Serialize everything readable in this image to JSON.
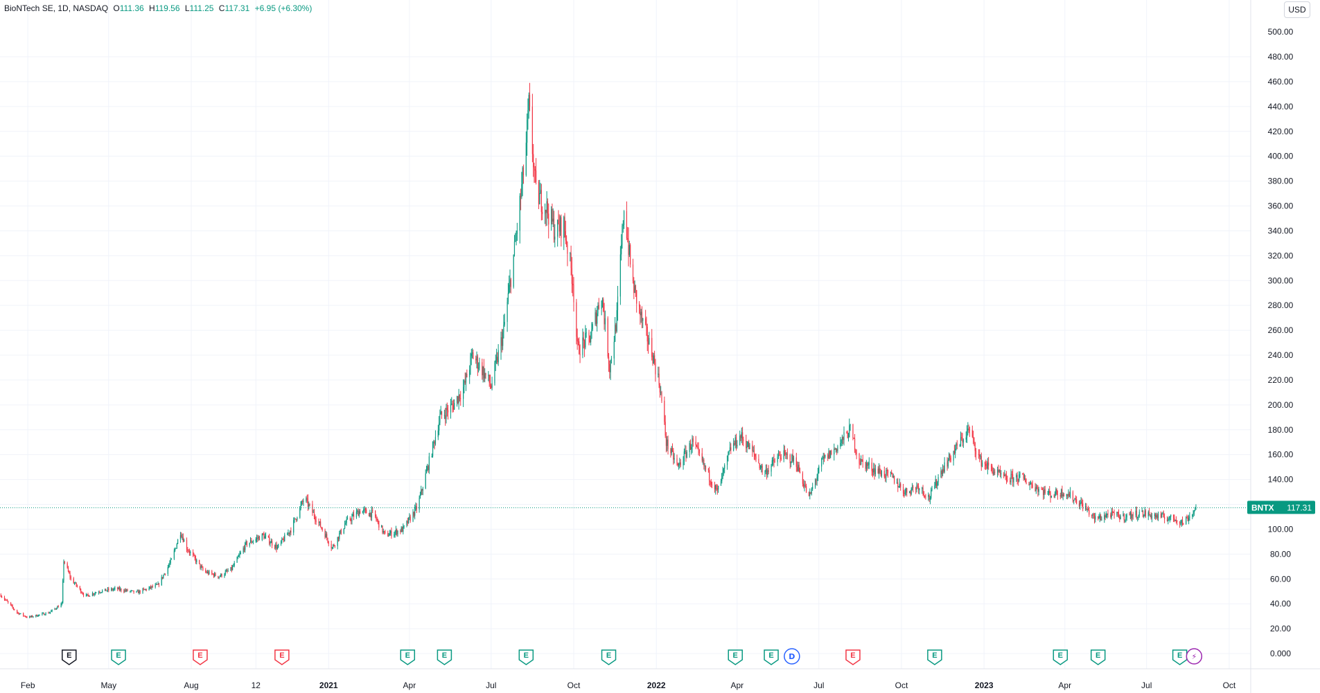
{
  "header": {
    "symbol": "BioNTech SE, 1D, NASDAQ",
    "open_label": "O",
    "open": "111.36",
    "high_label": "H",
    "high": "119.56",
    "low_label": "L",
    "low": "111.25",
    "close_label": "C",
    "close": "117.31",
    "change": "+6.95 (+6.30%)"
  },
  "currency": "USD",
  "colors": {
    "up": "#089981",
    "down": "#f23645",
    "grid": "#f0f3fa",
    "text": "#131722",
    "dividend": "#2962ff",
    "split": "#9c27b0"
  },
  "chart_data": {
    "type": "candlestick",
    "ticker": "BNTX",
    "last_price": "117.31",
    "ylim": [
      0,
      480
    ],
    "y_ticks": [
      "0.000",
      "20.00",
      "40.00",
      "60.00",
      "80.00",
      "100.00",
      "120.00",
      "140.00",
      "160.00",
      "180.00",
      "200.00",
      "220.00",
      "240.00",
      "260.00",
      "280.00",
      "300.00",
      "320.00",
      "340.00",
      "360.00",
      "380.00",
      "400.00",
      "420.00",
      "440.00",
      "460.00",
      "480.00"
    ],
    "x_ticks": [
      {
        "label": "Feb",
        "date": "2020-02-01",
        "bold": false
      },
      {
        "label": "May",
        "date": "2020-05-01",
        "bold": false
      },
      {
        "label": "Aug",
        "date": "2020-08-01",
        "bold": false
      },
      {
        "label": "12",
        "date": "2020-10-12",
        "bold": false
      },
      {
        "label": "2021",
        "date": "2021-01-01",
        "bold": true
      },
      {
        "label": "Apr",
        "date": "2021-04-01",
        "bold": false
      },
      {
        "label": "Jul",
        "date": "2021-07-01",
        "bold": false
      },
      {
        "label": "Oct",
        "date": "2021-10-01",
        "bold": false
      },
      {
        "label": "2022",
        "date": "2022-01-01",
        "bold": true
      },
      {
        "label": "Apr",
        "date": "2022-04-01",
        "bold": false
      },
      {
        "label": "Jul",
        "date": "2022-07-01",
        "bold": false
      },
      {
        "label": "Oct",
        "date": "2022-10-01",
        "bold": false
      },
      {
        "label": "2023",
        "date": "2023-01-01",
        "bold": true
      },
      {
        "label": "Apr",
        "date": "2023-04-01",
        "bold": false
      },
      {
        "label": "Jul",
        "date": "2023-07-01",
        "bold": false
      },
      {
        "label": "Oct",
        "date": "2023-10-01",
        "bold": false
      }
    ],
    "x_range": [
      "2020-01-01",
      "2023-10-25"
    ],
    "price_path": [
      [
        "2020-01-02",
        47
      ],
      [
        "2020-01-20",
        33
      ],
      [
        "2020-02-01",
        29
      ],
      [
        "2020-02-25",
        33
      ],
      [
        "2020-03-10",
        40
      ],
      [
        "2020-03-12",
        75
      ],
      [
        "2020-03-20",
        60
      ],
      [
        "2020-04-05",
        46
      ],
      [
        "2020-04-20",
        50
      ],
      [
        "2020-05-10",
        52
      ],
      [
        "2020-06-01",
        49
      ],
      [
        "2020-06-25",
        55
      ],
      [
        "2020-07-10",
        75
      ],
      [
        "2020-07-20",
        98
      ],
      [
        "2020-07-27",
        85
      ],
      [
        "2020-08-15",
        66
      ],
      [
        "2020-09-01",
        62
      ],
      [
        "2020-09-15",
        68
      ],
      [
        "2020-10-01",
        88
      ],
      [
        "2020-10-20",
        95
      ],
      [
        "2020-11-05",
        85
      ],
      [
        "2020-11-20",
        100
      ],
      [
        "2020-12-05",
        125
      ],
      [
        "2020-12-25",
        100
      ],
      [
        "2021-01-05",
        85
      ],
      [
        "2021-01-20",
        105
      ],
      [
        "2021-02-05",
        115
      ],
      [
        "2021-02-20",
        112
      ],
      [
        "2021-03-05",
        95
      ],
      [
        "2021-03-25",
        100
      ],
      [
        "2021-04-10",
        118
      ],
      [
        "2021-04-25",
        160
      ],
      [
        "2021-05-05",
        190
      ],
      [
        "2021-05-20",
        200
      ],
      [
        "2021-06-01",
        215
      ],
      [
        "2021-06-10",
        240
      ],
      [
        "2021-06-20",
        230
      ],
      [
        "2021-07-01",
        215
      ],
      [
        "2021-07-15",
        260
      ],
      [
        "2021-07-28",
        330
      ],
      [
        "2021-08-08",
        400
      ],
      [
        "2021-08-12",
        440
      ],
      [
        "2021-08-20",
        370
      ],
      [
        "2021-08-31",
        360
      ],
      [
        "2021-09-10",
        340
      ],
      [
        "2021-09-20",
        345
      ],
      [
        "2021-09-30",
        300
      ],
      [
        "2021-10-05",
        245
      ],
      [
        "2021-10-20",
        255
      ],
      [
        "2021-11-01",
        290
      ],
      [
        "2021-11-10",
        230
      ],
      [
        "2021-11-18",
        270
      ],
      [
        "2021-11-26",
        360
      ],
      [
        "2021-12-05",
        300
      ],
      [
        "2021-12-15",
        270
      ],
      [
        "2021-12-28",
        240
      ],
      [
        "2022-01-05",
        215
      ],
      [
        "2022-01-12",
        170
      ],
      [
        "2022-01-25",
        150
      ],
      [
        "2022-02-10",
        170
      ],
      [
        "2022-02-25",
        148
      ],
      [
        "2022-03-10",
        130
      ],
      [
        "2022-03-25",
        165
      ],
      [
        "2022-04-05",
        175
      ],
      [
        "2022-04-20",
        160
      ],
      [
        "2022-05-01",
        145
      ],
      [
        "2022-05-20",
        160
      ],
      [
        "2022-06-05",
        155
      ],
      [
        "2022-06-20",
        125
      ],
      [
        "2022-07-05",
        155
      ],
      [
        "2022-07-20",
        165
      ],
      [
        "2022-08-05",
        180
      ],
      [
        "2022-08-15",
        155
      ],
      [
        "2022-09-01",
        148
      ],
      [
        "2022-09-20",
        142
      ],
      [
        "2022-10-05",
        130
      ],
      [
        "2022-10-20",
        135
      ],
      [
        "2022-11-01",
        125
      ],
      [
        "2022-11-15",
        148
      ],
      [
        "2022-12-01",
        165
      ],
      [
        "2022-12-15",
        180
      ],
      [
        "2022-12-28",
        155
      ],
      [
        "2023-01-10",
        148
      ],
      [
        "2023-01-25",
        140
      ],
      [
        "2023-02-10",
        142
      ],
      [
        "2023-02-25",
        135
      ],
      [
        "2023-03-15",
        128
      ],
      [
        "2023-04-01",
        130
      ],
      [
        "2023-04-20",
        120
      ],
      [
        "2023-05-05",
        108
      ],
      [
        "2023-05-20",
        112
      ],
      [
        "2023-06-05",
        110
      ],
      [
        "2023-06-25",
        113
      ],
      [
        "2023-07-15",
        110
      ],
      [
        "2023-08-05",
        108
      ],
      [
        "2023-08-10",
        105
      ],
      [
        "2023-08-20",
        112
      ],
      [
        "2023-08-25",
        117
      ]
    ],
    "events": [
      {
        "type": "earnings",
        "date": "2020-03-18",
        "label": "E",
        "color": "#131722"
      },
      {
        "type": "earnings",
        "date": "2020-05-12",
        "label": "E",
        "color": "#089981"
      },
      {
        "type": "earnings",
        "date": "2020-08-11",
        "label": "E",
        "color": "#f23645"
      },
      {
        "type": "earnings",
        "date": "2020-11-10",
        "label": "E",
        "color": "#f23645"
      },
      {
        "type": "earnings",
        "date": "2021-03-30",
        "label": "E",
        "color": "#089981"
      },
      {
        "type": "earnings",
        "date": "2021-05-10",
        "label": "E",
        "color": "#089981"
      },
      {
        "type": "earnings",
        "date": "2021-08-09",
        "label": "E",
        "color": "#089981"
      },
      {
        "type": "earnings",
        "date": "2021-11-09",
        "label": "E",
        "color": "#089981"
      },
      {
        "type": "earnings",
        "date": "2022-03-30",
        "label": "E",
        "color": "#089981"
      },
      {
        "type": "earnings",
        "date": "2022-05-09",
        "label": "E",
        "color": "#089981"
      },
      {
        "type": "dividend",
        "date": "2022-06-01",
        "label": "D",
        "color": "#2962ff"
      },
      {
        "type": "earnings",
        "date": "2022-08-08",
        "label": "E",
        "color": "#f23645"
      },
      {
        "type": "earnings",
        "date": "2022-11-07",
        "label": "E",
        "color": "#089981"
      },
      {
        "type": "earnings",
        "date": "2023-03-27",
        "label": "E",
        "color": "#089981"
      },
      {
        "type": "earnings",
        "date": "2023-05-08",
        "label": "E",
        "color": "#089981"
      },
      {
        "type": "earnings",
        "date": "2023-08-07",
        "label": "E",
        "color": "#089981"
      },
      {
        "type": "split",
        "date": "2023-08-23",
        "label": "⚡",
        "color": "#9c27b0"
      }
    ]
  }
}
